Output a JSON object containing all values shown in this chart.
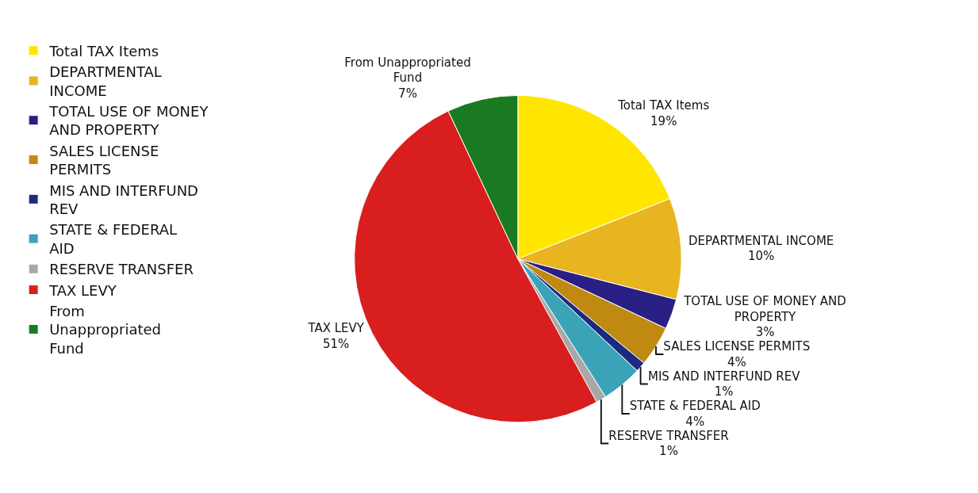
{
  "chart_data": {
    "type": "pie",
    "categories": [
      "Total TAX Items",
      "DEPARTMENTAL INCOME",
      "TOTAL USE OF MONEY AND PROPERTY",
      "SALES LICENSE PERMITS",
      "MIS AND INTERFUND REV",
      "STATE & FEDERAL AID",
      "RESERVE TRANSFER",
      "TAX LEVY",
      "From Unappropriated Fund"
    ],
    "values": [
      19,
      10,
      3,
      4,
      1,
      4,
      1,
      51,
      7
    ],
    "value_labels": [
      "19%",
      "10%",
      "3%",
      "4%",
      "1%",
      "4%",
      "1%",
      "51%",
      "7%"
    ],
    "colors": [
      "#ffe600",
      "#e8b420",
      "#2a1f85",
      "#c08a12",
      "#1c2a80",
      "#3aa3b8",
      "#a8a8a8",
      "#d81e1e",
      "#1a7a22"
    ],
    "legend": "top left"
  }
}
